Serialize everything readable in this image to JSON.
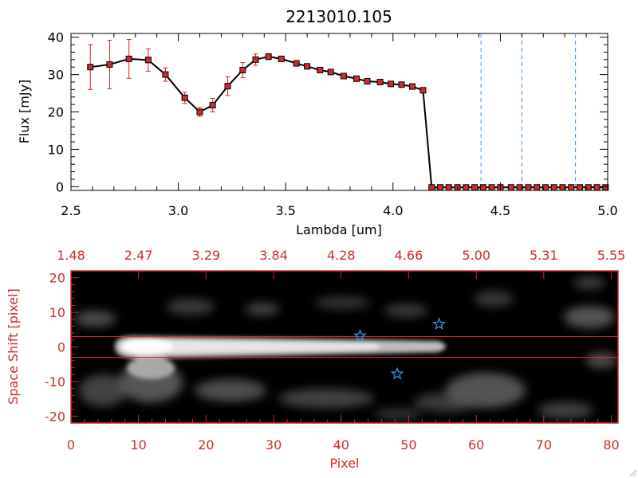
{
  "chart_data": [
    {
      "type": "line",
      "title": "2213010.105",
      "xlabel": "Lambda [um]",
      "ylabel": "Flux [mJy]",
      "xlim": [
        2.5,
        5.0
      ],
      "ylim": [
        -1,
        41
      ],
      "xticks": [
        "2.5",
        "3.0",
        "3.5",
        "4.0",
        "4.5",
        "5.0"
      ],
      "yticks": [
        "0",
        "10",
        "20",
        "30",
        "40"
      ],
      "series": [
        {
          "name": "flux",
          "x": [
            2.59,
            2.68,
            2.77,
            2.86,
            2.94,
            3.03,
            3.1,
            3.16,
            3.23,
            3.3,
            3.36,
            3.42,
            3.48,
            3.55,
            3.6,
            3.66,
            3.71,
            3.77,
            3.83,
            3.88,
            3.94,
            3.99,
            4.04,
            4.09,
            4.14,
            4.18,
            4.22,
            4.26,
            4.3,
            4.34,
            4.38,
            4.42,
            4.46,
            4.5,
            4.55,
            4.59,
            4.63,
            4.67,
            4.71,
            4.75,
            4.79,
            4.83,
            4.87,
            4.91,
            4.95,
            4.99
          ],
          "y": [
            32.0,
            32.7,
            34.2,
            33.9,
            30.0,
            23.8,
            20.0,
            21.8,
            26.9,
            31.2,
            34.0,
            34.8,
            34.2,
            33.0,
            32.2,
            31.2,
            30.7,
            29.6,
            28.9,
            28.2,
            28.0,
            27.5,
            27.3,
            26.8,
            25.8,
            -0.2,
            -0.2,
            -0.2,
            -0.2,
            -0.2,
            -0.2,
            -0.2,
            -0.2,
            -0.2,
            -0.2,
            -0.2,
            -0.2,
            -0.2,
            -0.2,
            -0.2,
            -0.2,
            -0.2,
            -0.2,
            -0.2,
            -0.2,
            -0.2
          ],
          "err": [
            6.0,
            6.5,
            5.2,
            3.0,
            1.8,
            1.5,
            1.2,
            1.8,
            2.5,
            2.0,
            1.5,
            0.8,
            0.6,
            0.6,
            0.5,
            0.5,
            0.5,
            0.5,
            0.5,
            0.5,
            0.5,
            0.5,
            0.5,
            0.5,
            0.5,
            0,
            0,
            0,
            0,
            0,
            0,
            0,
            0,
            0,
            0,
            0,
            0,
            0,
            0,
            0,
            0,
            0,
            0,
            0,
            0,
            0
          ]
        }
      ],
      "vlines_x": [
        4.41,
        4.6,
        4.85
      ],
      "colors": {
        "line": "#000000",
        "marker": "#d22a2a",
        "errorbar": "#d22a2a",
        "vline": "#3d8fe6",
        "baseline": "#d22a2a"
      }
    },
    {
      "type": "heatmap",
      "xlabel": "Pixel",
      "ylabel": "Space Shift [pixel]",
      "xlim": [
        0,
        81
      ],
      "ylim": [
        -22,
        22
      ],
      "xticks": [
        "0",
        "10",
        "20",
        "30",
        "40",
        "50",
        "60",
        "70",
        "80"
      ],
      "yticks": [
        "20",
        "10",
        "0",
        "-10",
        "-20"
      ],
      "top_axis_labels": [
        "1.48",
        "2.47",
        "3.29",
        "3.84",
        "4.28",
        "4.66",
        "5.00",
        "5.31",
        "5.55"
      ],
      "hlines_y": [
        3,
        -3
      ],
      "stars": [
        {
          "x": 42.8,
          "y": 3.2
        },
        {
          "x": 54.5,
          "y": 6.6
        },
        {
          "x": 48.3,
          "y": -7.8
        }
      ],
      "colors": {
        "axis": "#d22a2a",
        "star": "#3d8fe6",
        "hline": "#d22a2a"
      }
    }
  ]
}
